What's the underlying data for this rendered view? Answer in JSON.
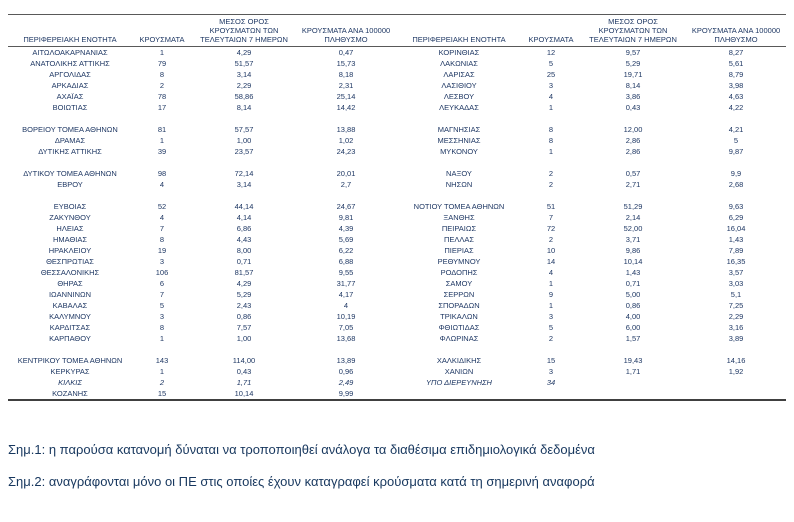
{
  "table": {
    "headers": {
      "region": "ΠΕΡΙΦΕΡΕΙΑΚΗ ΕΝΟΤΗΤΑ",
      "cases": "ΚΡΟΥΣΜΑΤΑ",
      "mean7": "ΜΕΣΟΣ ΟΡΟΣ\nΚΡΟΥΣΜΑΤΩΝ ΤΩΝ\nΤΕΛΕΥΤΑΙΩΝ 7 ΗΜΕΡΩΝ",
      "per100k": "ΚΡΟΥΣΜΑΤΑ ΑΝΑ 100000\nΠΛΗΘΥΣΜΟ"
    },
    "left_rows": [
      {
        "cells": [
          "ΑΙΤΩΛΟΑΚΑΡΝΑΝΙΑΣ",
          "1",
          "4,29",
          "0,47"
        ]
      },
      {
        "cells": [
          "ΑΝΑΤΟΛΙΚΗΣ ΑΤΤΙΚΗΣ",
          "79",
          "51,57",
          "15,73"
        ]
      },
      {
        "cells": [
          "ΑΡΓΟΛΙΔΑΣ",
          "8",
          "3,14",
          "8,18"
        ]
      },
      {
        "cells": [
          "ΑΡΚΑΔΙΑΣ",
          "2",
          "2,29",
          "2,31"
        ]
      },
      {
        "cells": [
          "ΑΧΑΪΑΣ",
          "78",
          "58,86",
          "25,14"
        ]
      },
      {
        "cells": [
          "ΒΟΙΩΤΙΑΣ",
          "17",
          "8,14",
          "14,42"
        ]
      },
      null,
      {
        "cells": [
          "ΒΟΡΕΙΟΥ ΤΟΜΕΑ ΑΘΗΝΩΝ",
          "81",
          "57,57",
          "13,88"
        ]
      },
      {
        "cells": [
          "ΔΡΑΜΑΣ",
          "1",
          "1,00",
          "1,02"
        ]
      },
      {
        "cells": [
          "ΔΥΤΙΚΗΣ ΑΤΤΙΚΗΣ",
          "39",
          "23,57",
          "24,23"
        ]
      },
      null,
      {
        "cells": [
          "ΔΥΤΙΚΟΥ ΤΟΜΕΑ ΑΘΗΝΩΝ",
          "98",
          "72,14",
          "20,01"
        ]
      },
      {
        "cells": [
          "ΕΒΡΟΥ",
          "4",
          "3,14",
          "2,7"
        ]
      },
      null,
      {
        "cells": [
          "ΕΥΒΟΙΑΣ",
          "52",
          "44,14",
          "24,67"
        ]
      },
      {
        "cells": [
          "ΖΑΚΥΝΘΟΥ",
          "4",
          "4,14",
          "9,81"
        ]
      },
      {
        "cells": [
          "ΗΛΕΙΑΣ",
          "7",
          "6,86",
          "4,39"
        ]
      },
      {
        "cells": [
          "ΗΜΑΘΙΑΣ",
          "8",
          "4,43",
          "5,69"
        ]
      },
      {
        "cells": [
          "ΗΡΑΚΛΕΙΟΥ",
          "19",
          "8,00",
          "6,22"
        ]
      },
      {
        "cells": [
          "ΘΕΣΠΡΩΤΙΑΣ",
          "3",
          "0,71",
          "6,88"
        ]
      },
      {
        "cells": [
          "ΘΕΣΣΑΛΟΝΙΚΗΣ",
          "106",
          "81,57",
          "9,55"
        ]
      },
      {
        "cells": [
          "ΘΗΡΑΣ",
          "6",
          "4,29",
          "31,77"
        ]
      },
      {
        "cells": [
          "ΙΩΑΝΝΙΝΩΝ",
          "7",
          "5,29",
          "4,17"
        ]
      },
      {
        "cells": [
          "ΚΑΒΑΛΑΣ",
          "5",
          "2,43",
          "4"
        ]
      },
      {
        "cells": [
          "ΚΑΛΥΜΝΟΥ",
          "3",
          "0,86",
          "10,19"
        ]
      },
      {
        "cells": [
          "ΚΑΡΔΙΤΣΑΣ",
          "8",
          "7,57",
          "7,05"
        ]
      },
      {
        "cells": [
          "ΚΑΡΠΑΘΟΥ",
          "1",
          "1,00",
          "13,68"
        ]
      },
      null,
      {
        "cells": [
          "ΚΕΝΤΡΙΚΟΥ ΤΟΜΕΑ ΑΘΗΝΩΝ",
          "143",
          "114,00",
          "13,89"
        ]
      },
      {
        "cells": [
          "ΚΕΡΚΥΡΑΣ",
          "1",
          "0,43",
          "0,96"
        ]
      },
      {
        "cells": [
          "ΚΙΛΚΙΣ",
          "2",
          "1,71",
          "2,49"
        ]
      },
      {
        "cells": [
          "ΚΟΖΑΝΗΣ",
          "15",
          "10,14",
          "9,99"
        ]
      }
    ],
    "right_rows": [
      {
        "cells": [
          "ΚΟΡΙΝΘΙΑΣ",
          "12",
          "9,57",
          "8,27"
        ]
      },
      {
        "cells": [
          "ΛΑΚΩΝΙΑΣ",
          "5",
          "5,29",
          "5,61"
        ]
      },
      {
        "cells": [
          "ΛΑΡΙΣΑΣ",
          "25",
          "19,71",
          "8,79"
        ]
      },
      {
        "cells": [
          "ΛΑΣΙΘΙΟΥ",
          "3",
          "8,14",
          "3,98"
        ]
      },
      {
        "cells": [
          "ΛΕΣΒΟΥ",
          "4",
          "3,86",
          "4,63"
        ]
      },
      {
        "cells": [
          "ΛΕΥΚΑΔΑΣ",
          "1",
          "0,43",
          "4,22"
        ]
      },
      null,
      {
        "cells": [
          "ΜΑΓΝΗΣΙΑΣ",
          "8",
          "12,00",
          "4,21"
        ]
      },
      {
        "cells": [
          "ΜΕΣΣΗΝΙΑΣ",
          "8",
          "2,86",
          "5"
        ]
      },
      {
        "cells": [
          "ΜΥΚΟΝΟΥ",
          "1",
          "2,86",
          "9,87"
        ]
      },
      null,
      {
        "cells": [
          "ΝΑΞΟΥ",
          "2",
          "0,57",
          "9,9"
        ]
      },
      {
        "cells": [
          "ΝΗΣΩΝ",
          "2",
          "2,71",
          "2,68"
        ]
      },
      null,
      {
        "cells": [
          "ΝΟΤΙΟΥ ΤΟΜΕΑ ΑΘΗΝΩΝ",
          "51",
          "51,29",
          "9,63"
        ]
      },
      {
        "cells": [
          "ΞΑΝΘΗΣ",
          "7",
          "2,14",
          "6,29"
        ]
      },
      {
        "cells": [
          "ΠΕΙΡΑΙΩΣ",
          "72",
          "52,00",
          "16,04"
        ]
      },
      {
        "cells": [
          "ΠΕΛΛΑΣ",
          "2",
          "3,71",
          "1,43"
        ]
      },
      {
        "cells": [
          "ΠΙΕΡΙΑΣ",
          "10",
          "9,86",
          "7,89"
        ]
      },
      {
        "cells": [
          "ΡΕΘΥΜΝΟΥ",
          "14",
          "10,14",
          "16,35"
        ]
      },
      {
        "cells": [
          "ΡΟΔΟΠΗΣ",
          "4",
          "1,43",
          "3,57"
        ]
      },
      {
        "cells": [
          "ΣΑΜΟΥ",
          "1",
          "0,71",
          "3,03"
        ]
      },
      {
        "cells": [
          "ΣΕΡΡΩΝ",
          "9",
          "5,00",
          "5,1"
        ]
      },
      {
        "cells": [
          "ΣΠΟΡΑΔΩΝ",
          "1",
          "0,86",
          "7,25"
        ]
      },
      {
        "cells": [
          "ΤΡΙΚΑΛΩΝ",
          "3",
          "4,00",
          "2,29"
        ]
      },
      {
        "cells": [
          "ΦΘΙΩΤΙΔΑΣ",
          "5",
          "6,00",
          "3,16"
        ]
      },
      {
        "cells": [
          "ΦΛΩΡΙΝΑΣ",
          "2",
          "1,57",
          "3,89"
        ]
      },
      null,
      {
        "cells": [
          "ΧΑΛΚΙΔΙΚΗΣ",
          "15",
          "19,43",
          "14,16"
        ]
      },
      {
        "cells": [
          "ΧΑΝΙΩΝ",
          "3",
          "1,71",
          "1,92"
        ]
      },
      {
        "cells": [
          "ΥΠΟ ΔΙΕΡΕΥΝΗΣΗ",
          "34",
          "",
          ""
        ],
        "italic": true
      },
      null
    ]
  },
  "notes": {
    "note1": "Σημ.1: η παρούσα κατανομή δύναται να τροποποιηθεί ανάλογα τα διαθέσιμα επιδημιολογικά δεδομένα",
    "note2": "Σημ.2: αναγράφονται μόνο οι ΠΕ στις οποίες έχουν καταγραφεί κρούσματα κατά τη σημερινή αναφορά"
  },
  "colors": {
    "text": "#1f3864",
    "rule": "#595959"
  }
}
